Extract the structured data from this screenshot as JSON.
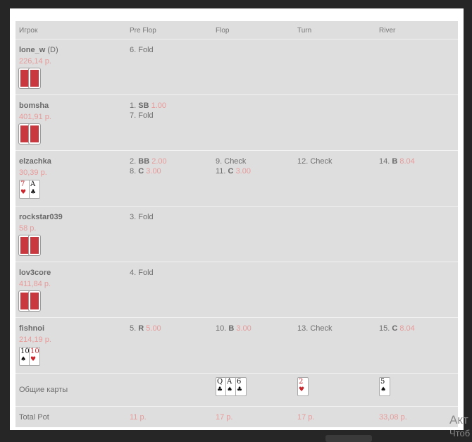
{
  "headers": [
    "Игрок",
    "Pre Flop",
    "Flop",
    "Turn",
    "River"
  ],
  "players": [
    {
      "name": "lone_w",
      "dealer": "(D)",
      "stack": "226,14 р.",
      "cards": [
        null,
        null
      ],
      "streets": [
        [
          {
            "n": "6.",
            "text": "Fold"
          }
        ],
        [],
        [],
        []
      ]
    },
    {
      "name": "bomsha",
      "dealer": "",
      "stack": "401,91 р.",
      "cards": [
        null,
        null
      ],
      "streets": [
        [
          {
            "n": "1.",
            "code": "SB",
            "amt": "1.00"
          },
          {
            "n": "7.",
            "text": "Fold"
          }
        ],
        [],
        [],
        []
      ]
    },
    {
      "name": "elzachka",
      "dealer": "",
      "stack": "30,39 р.",
      "cards": [
        {
          "rank": "7",
          "suit": "♥"
        },
        {
          "rank": "A",
          "suit": "♣"
        }
      ],
      "streets": [
        [
          {
            "n": "2.",
            "code": "BB",
            "amt": "2.00"
          },
          {
            "n": "8.",
            "code": "C",
            "amt": "3.00"
          }
        ],
        [
          {
            "n": "9.",
            "text": "Check"
          },
          {
            "n": "11.",
            "code": "C",
            "amt": "3.00"
          }
        ],
        [
          {
            "n": "12.",
            "text": "Check"
          }
        ],
        [
          {
            "n": "14.",
            "code": "B",
            "amt": "8.04"
          }
        ]
      ]
    },
    {
      "name": "rockstar039",
      "dealer": "",
      "stack": "58 р.",
      "cards": [
        null,
        null
      ],
      "streets": [
        [
          {
            "n": "3.",
            "text": "Fold"
          }
        ],
        [],
        [],
        []
      ]
    },
    {
      "name": "lov3core",
      "dealer": "",
      "stack": "411,84 р.",
      "cards": [
        null,
        null
      ],
      "streets": [
        [
          {
            "n": "4.",
            "text": "Fold"
          }
        ],
        [],
        [],
        []
      ]
    },
    {
      "name": "fishnoi",
      "dealer": "",
      "stack": "214,19 р.",
      "cards": [
        {
          "rank": "10",
          "suit": "♠"
        },
        {
          "rank": "10",
          "suit": "♥"
        }
      ],
      "streets": [
        [
          {
            "n": "5.",
            "code": "R",
            "amt": "5.00"
          }
        ],
        [
          {
            "n": "10.",
            "code": "B",
            "amt": "3.00"
          }
        ],
        [
          {
            "n": "13.",
            "text": "Check"
          }
        ],
        [
          {
            "n": "15.",
            "code": "C",
            "amt": "8.04"
          }
        ]
      ]
    }
  ],
  "community": {
    "label": "Общие карты",
    "flop": [
      {
        "rank": "Q",
        "suit": "♣"
      },
      {
        "rank": "A",
        "suit": "♠"
      },
      {
        "rank": "6",
        "suit": "♣"
      }
    ],
    "turn": [
      {
        "rank": "2",
        "suit": "♥"
      }
    ],
    "river": [
      {
        "rank": "5",
        "suit": "♠"
      }
    ]
  },
  "pot": {
    "label": "Total Pot",
    "values": [
      "11 р.",
      "17 р.",
      "17 р.",
      "33,08 р."
    ]
  },
  "watermark": {
    "line1": "Акт",
    "line2": "Чтоб"
  },
  "colors": {
    "amount": "#e89a9a",
    "card_back": "#c8383e",
    "red_suit": "#c8262c",
    "table_bg": "#dedede"
  }
}
